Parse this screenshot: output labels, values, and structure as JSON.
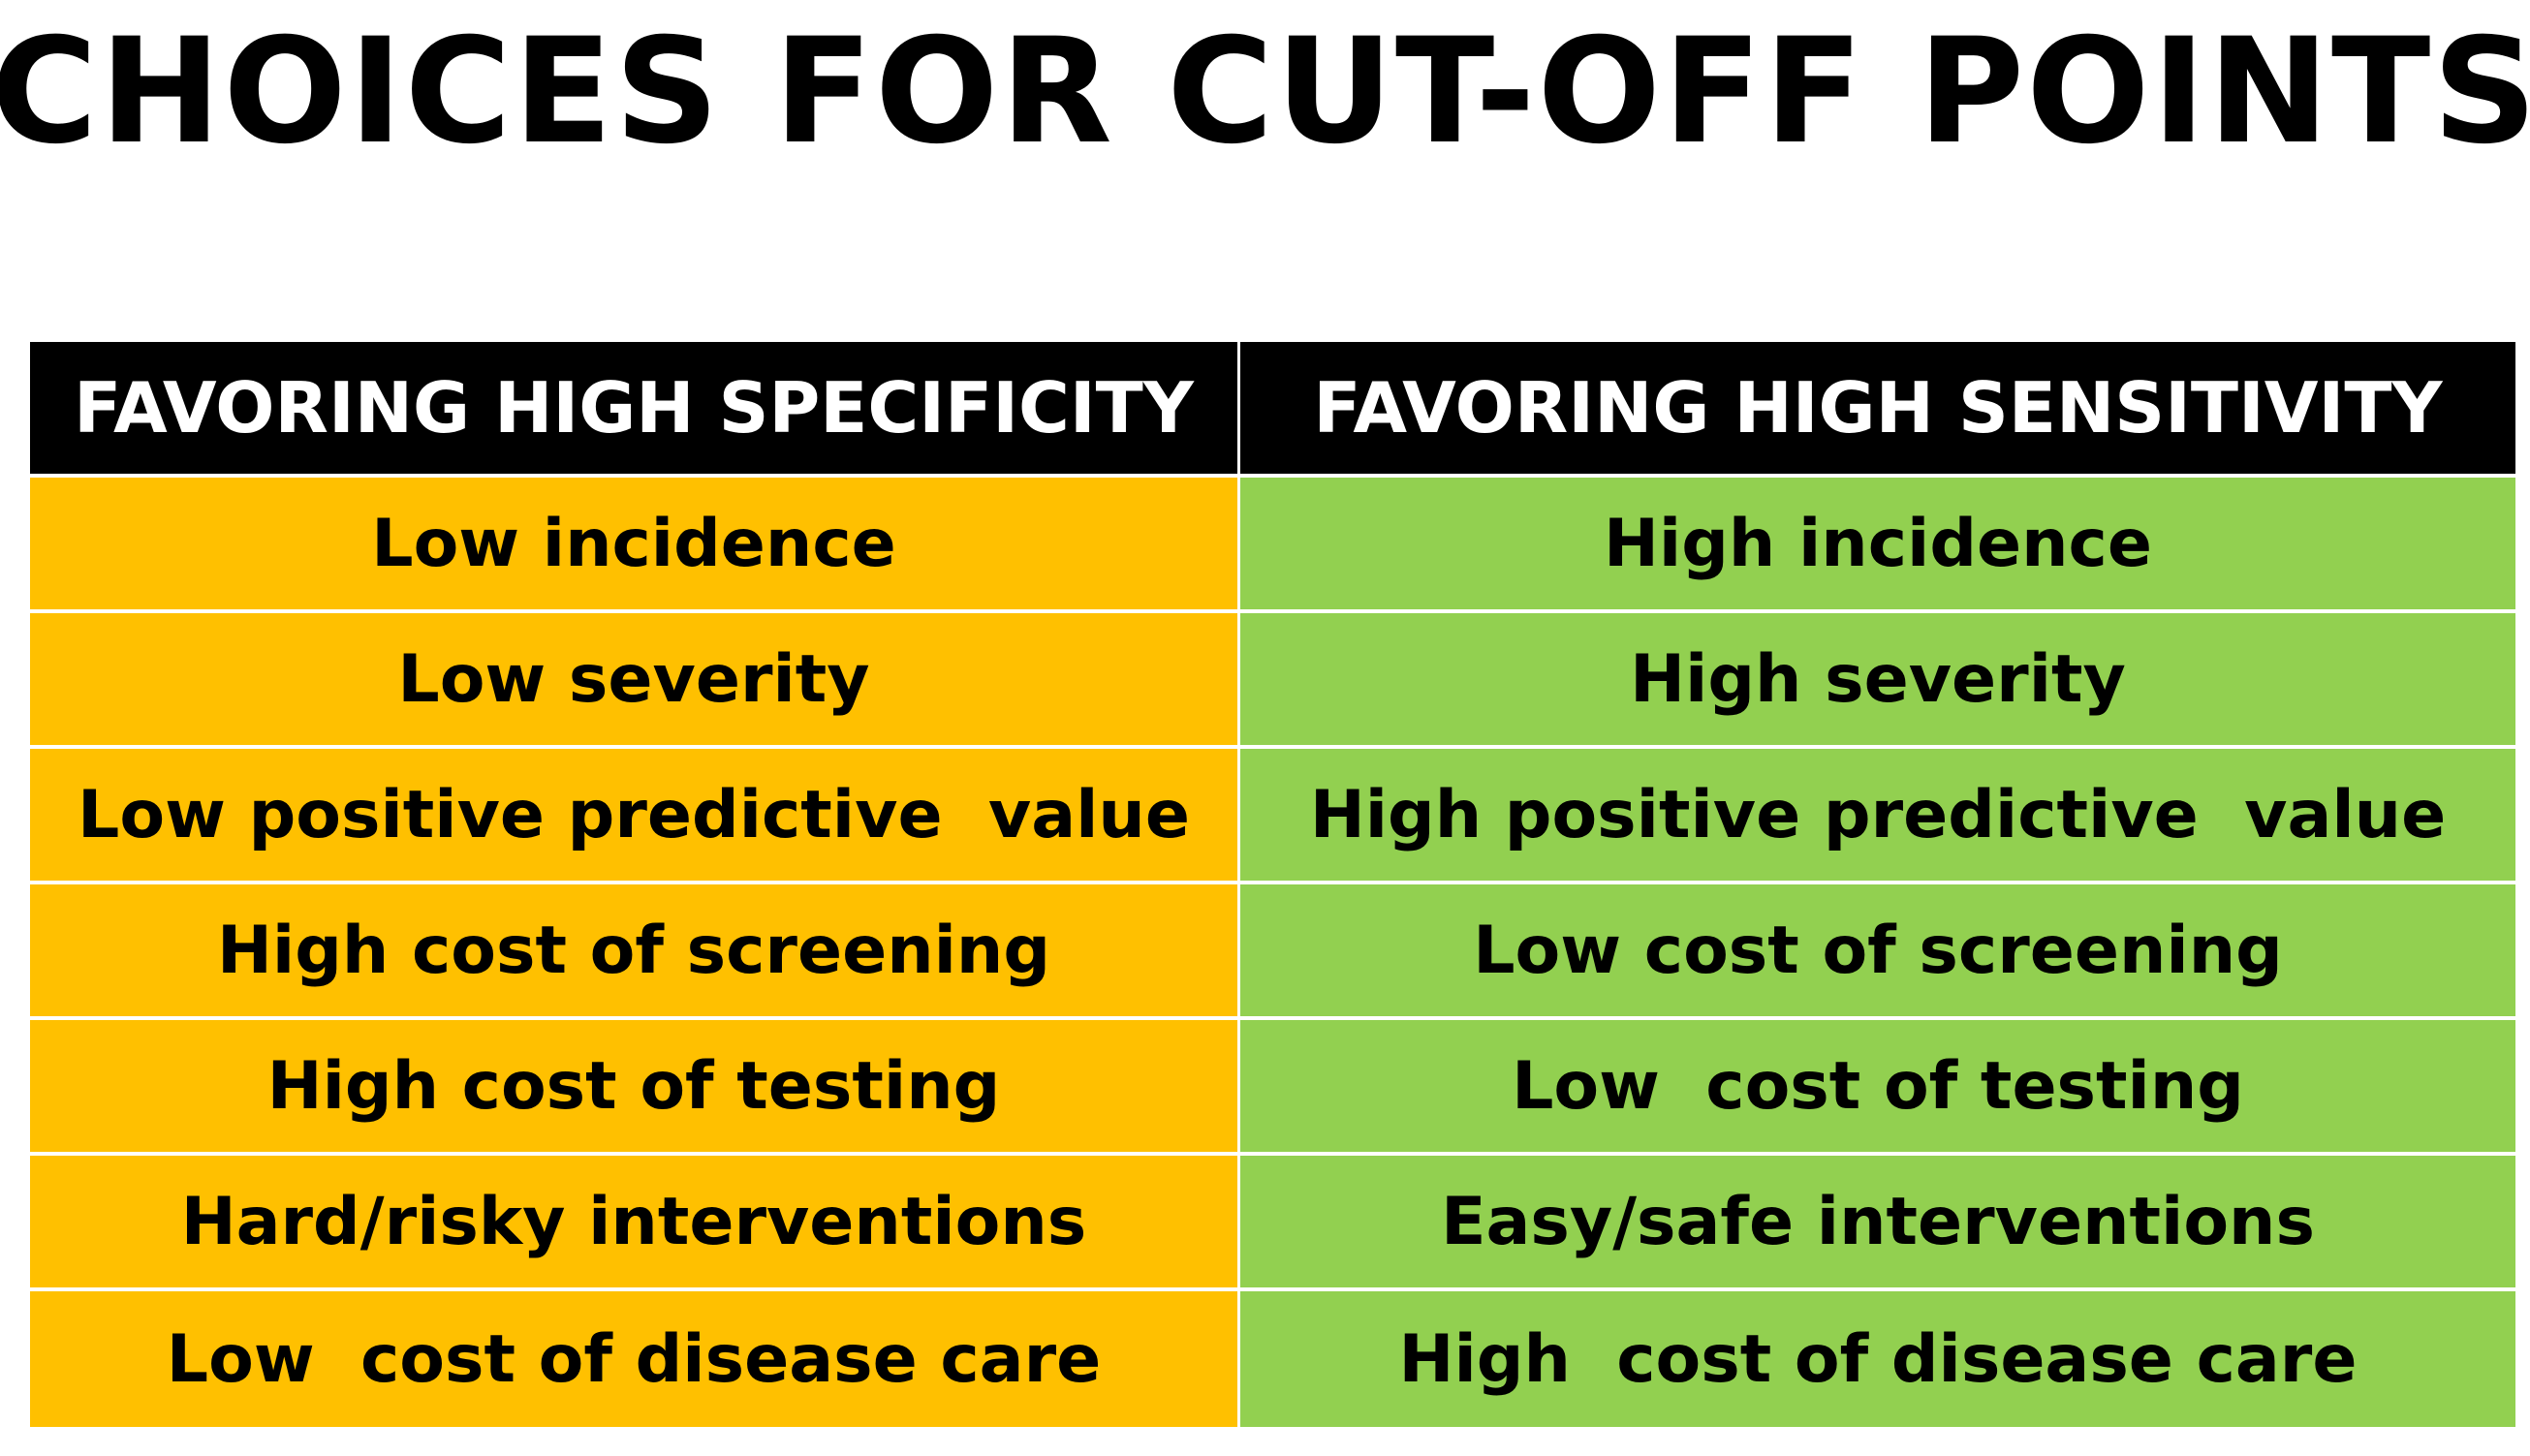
{
  "title": "CHOICES FOR CUT-OFF POINTS",
  "table": {
    "headers": [
      "FAVORING HIGH SPECIFICITY",
      "FAVORING HIGH SENSITIVITY"
    ],
    "rows": [
      [
        "Low incidence",
        "High incidence"
      ],
      [
        "Low severity",
        "High severity"
      ],
      [
        "Low positive predictive  value",
        "High positive predictive  value"
      ],
      [
        "High cost of screening",
        "Low cost of screening"
      ],
      [
        "High cost of testing",
        "Low  cost of testing"
      ],
      [
        "Hard/risky interventions",
        "Easy/safe interventions"
      ],
      [
        "Low  cost of disease care",
        "High  cost of disease care"
      ]
    ]
  },
  "colors": {
    "specificity_fill": "#ffc000",
    "sensitivity_fill": "#92d050",
    "header_fill": "#000000"
  }
}
